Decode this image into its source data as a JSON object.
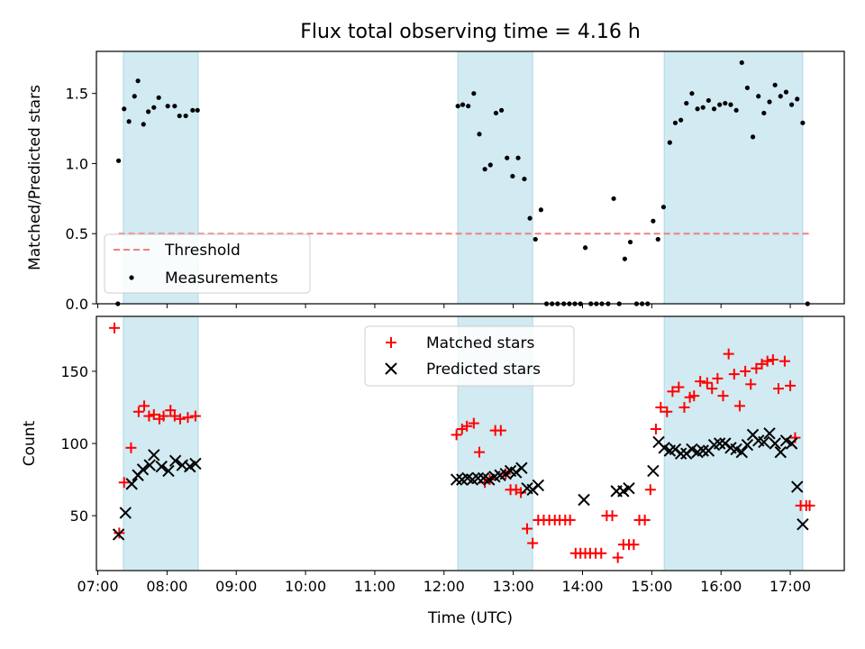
{
  "figure": {
    "title": "Flux total observing time = 4.16 h",
    "xlabel": "Time (UTC)"
  },
  "colors": {
    "shade": "#add8e6",
    "threshold": "#f08080",
    "matched": "#ff0000",
    "predicted": "#000000",
    "measurement": "#000000"
  },
  "chart_data": [
    {
      "type": "scatter",
      "panel": "top",
      "ylabel": "Matched/Predicted stars",
      "xlim": [
        6.98,
        17.78
      ],
      "ylim": [
        0,
        1.8
      ],
      "xticks": [
        7,
        8,
        9,
        10,
        11,
        12,
        13,
        14,
        15,
        16,
        17
      ],
      "xtick_labels": [
        "07:00",
        "08:00",
        "09:00",
        "10:00",
        "11:00",
        "12:00",
        "13:00",
        "14:00",
        "15:00",
        "16:00",
        "17:00"
      ],
      "yticks": [
        0,
        0.5,
        1.0,
        1.5
      ],
      "ytick_labels": [
        "0.0",
        "0.5",
        "1.0",
        "1.5"
      ],
      "shaded_intervals": [
        [
          7.37,
          8.45
        ],
        [
          12.2,
          13.28
        ],
        [
          15.18,
          17.18
        ]
      ],
      "threshold": {
        "name": "Threshold",
        "value": 0.5,
        "x_range": [
          7.3,
          17.3
        ],
        "style": "dashed"
      },
      "legend": {
        "position": "lower-left",
        "entries": [
          "Threshold",
          "Measurements"
        ]
      },
      "series": [
        {
          "name": "Measurements",
          "x": [
            7.29,
            7.3,
            7.38,
            7.45,
            7.53,
            7.58,
            7.66,
            7.73,
            7.81,
            7.88,
            8.01,
            8.11,
            8.18,
            8.27,
            8.37,
            8.44,
            12.2,
            12.27,
            12.35,
            12.43,
            12.51,
            12.59,
            12.67,
            12.75,
            12.83,
            12.91,
            12.99,
            13.07,
            13.16,
            13.24,
            13.32,
            13.4,
            13.48,
            13.56,
            13.64,
            13.73,
            13.81,
            13.89,
            13.97,
            14.04,
            14.12,
            14.2,
            14.28,
            14.37,
            14.45,
            14.53,
            14.61,
            14.69,
            14.78,
            14.86,
            14.94,
            15.02,
            15.09,
            15.17,
            15.26,
            15.34,
            15.42,
            15.5,
            15.58,
            15.66,
            15.74,
            15.82,
            15.9,
            15.98,
            16.06,
            16.14,
            16.22,
            16.3,
            16.38,
            16.46,
            16.54,
            16.62,
            16.7,
            16.78,
            16.86,
            16.94,
            17.02,
            17.1,
            17.18,
            17.25
          ],
          "y": [
            0.0,
            1.02,
            1.39,
            1.3,
            1.48,
            1.59,
            1.28,
            1.37,
            1.4,
            1.47,
            1.41,
            1.41,
            1.34,
            1.34,
            1.38,
            1.38,
            1.41,
            1.42,
            1.41,
            1.5,
            1.21,
            0.96,
            0.99,
            1.36,
            1.38,
            1.04,
            0.91,
            1.04,
            0.89,
            0.61,
            0.46,
            0.67,
            0.0,
            0.0,
            0.0,
            0.0,
            0.0,
            0.0,
            0.0,
            0.4,
            0.0,
            0.0,
            0.0,
            0.0,
            0.75,
            0.0,
            0.32,
            0.44,
            0.0,
            0.0,
            0.0,
            0.59,
            0.46,
            0.69,
            1.15,
            1.29,
            1.31,
            1.43,
            1.5,
            1.39,
            1.4,
            1.45,
            1.39,
            1.42,
            1.43,
            1.42,
            1.38,
            1.72,
            1.54,
            1.19,
            1.48,
            1.36,
            1.44,
            1.56,
            1.48,
            1.51,
            1.42,
            1.46,
            1.29,
            0.0
          ]
        }
      ]
    },
    {
      "type": "scatter",
      "panel": "bottom",
      "ylabel": "Count",
      "xlim": [
        6.98,
        17.78
      ],
      "ylim": [
        12,
        188
      ],
      "yticks": [
        50,
        100,
        150
      ],
      "ytick_labels": [
        "50",
        "100",
        "150"
      ],
      "xticks": [
        7,
        8,
        9,
        10,
        11,
        12,
        13,
        14,
        15,
        16,
        17
      ],
      "xtick_labels": [
        "07:00",
        "08:00",
        "09:00",
        "10:00",
        "11:00",
        "12:00",
        "13:00",
        "14:00",
        "15:00",
        "16:00",
        "17:00"
      ],
      "shaded_intervals": [
        [
          7.37,
          8.45
        ],
        [
          12.2,
          13.28
        ],
        [
          15.18,
          17.18
        ]
      ],
      "legend": {
        "position": "top-center",
        "entries": [
          "Matched stars",
          "Predicted stars"
        ]
      },
      "series": [
        {
          "name": "Matched stars",
          "marker": "plus",
          "x": [
            7.24,
            7.31,
            7.38,
            7.48,
            7.59,
            7.67,
            7.74,
            7.81,
            7.89,
            7.95,
            8.05,
            8.11,
            8.19,
            8.3,
            8.41,
            12.18,
            12.26,
            12.33,
            12.43,
            12.51,
            12.59,
            12.66,
            12.74,
            12.82,
            12.89,
            12.96,
            13.04,
            13.11,
            13.2,
            13.28,
            13.36,
            13.44,
            13.52,
            13.6,
            13.67,
            13.75,
            13.82,
            13.9,
            13.97,
            14.04,
            14.11,
            14.19,
            14.27,
            14.35,
            14.43,
            14.51,
            14.59,
            14.67,
            14.74,
            14.82,
            14.9,
            14.98,
            15.06,
            15.13,
            15.22,
            15.3,
            15.39,
            15.47,
            15.55,
            15.61,
            15.7,
            15.8,
            15.87,
            15.95,
            16.03,
            16.11,
            16.19,
            16.27,
            16.35,
            16.43,
            16.51,
            16.59,
            16.67,
            16.75,
            16.83,
            16.92,
            17.0,
            17.07,
            17.15,
            17.23,
            17.28
          ],
          "y": [
            180,
            38,
            73,
            97,
            122,
            126,
            119,
            120,
            117,
            119,
            123,
            119,
            117,
            118,
            119,
            106,
            110,
            112,
            114,
            94,
            73,
            75,
            109,
            109,
            79,
            68,
            68,
            66,
            41,
            31,
            47,
            47,
            47,
            47,
            47,
            47,
            47,
            24,
            24,
            24,
            24,
            24,
            24,
            50,
            50,
            21,
            30,
            30,
            30,
            47,
            47,
            68,
            110,
            125,
            122,
            136,
            139,
            125,
            132,
            133,
            143,
            142,
            138,
            145,
            133,
            162,
            148,
            126,
            150,
            141,
            152,
            155,
            157,
            158,
            138,
            157,
            140,
            104,
            57,
            57,
            57
          ]
        },
        {
          "name": "Predicted stars",
          "marker": "x",
          "x": [
            7.3,
            7.4,
            7.49,
            7.58,
            7.65,
            7.75,
            7.81,
            7.92,
            8.02,
            8.12,
            8.22,
            8.33,
            8.41,
            12.18,
            12.26,
            12.34,
            12.41,
            12.49,
            12.57,
            12.65,
            12.73,
            12.81,
            12.89,
            12.96,
            13.04,
            13.12,
            13.2,
            13.28,
            13.36,
            14.02,
            14.49,
            14.59,
            14.67,
            15.02,
            15.1,
            15.18,
            15.26,
            15.34,
            15.42,
            15.5,
            15.58,
            15.66,
            15.74,
            15.82,
            15.9,
            15.98,
            16.06,
            16.14,
            16.22,
            16.3,
            16.38,
            16.46,
            16.54,
            16.62,
            16.7,
            16.78,
            16.86,
            16.94,
            17.02,
            17.1,
            17.18
          ],
          "y": [
            37,
            52,
            72,
            78,
            82,
            85,
            92,
            84,
            81,
            88,
            85,
            84,
            86,
            75,
            75,
            76,
            75,
            76,
            76,
            75,
            77,
            78,
            79,
            81,
            80,
            83,
            69,
            68,
            71,
            61,
            67,
            67,
            69,
            81,
            101,
            97,
            95,
            96,
            93,
            93,
            96,
            94,
            95,
            95,
            99,
            100,
            100,
            97,
            96,
            94,
            99,
            106,
            102,
            101,
            107,
            100,
            94,
            102,
            100,
            70,
            44
          ]
        }
      ]
    }
  ]
}
